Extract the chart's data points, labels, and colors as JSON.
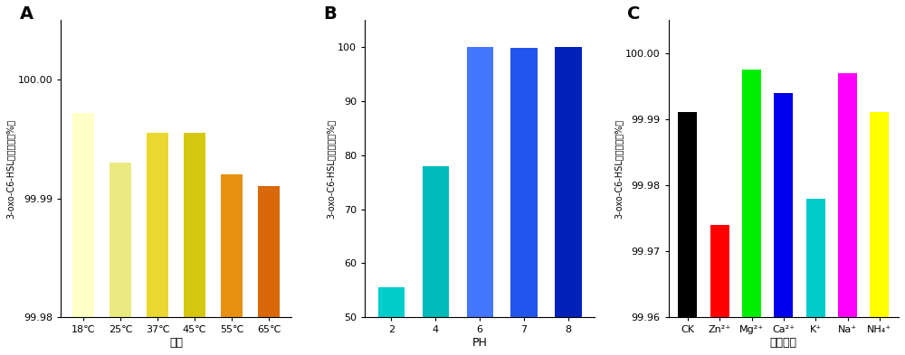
{
  "A": {
    "categories": [
      "18℃",
      "25℃",
      "37℃",
      "45℃",
      "55℃",
      "65℃"
    ],
    "values": [
      99.9972,
      99.993,
      99.9955,
      99.9955,
      99.992,
      99.991
    ],
    "colors": [
      "#FFFFC8",
      "#EAEA80",
      "#E8D830",
      "#D4C810",
      "#E89010",
      "#D86808"
    ],
    "xlabel": "温度",
    "ylabel": "3-oxo-C6-HSL的降解量（%）",
    "ylim_lo": 99.98,
    "ylim_hi": 100.005,
    "yticks": [
      99.98,
      99.99,
      100.0
    ],
    "ytick_labels": [
      "99.98",
      "99.99",
      "100.00"
    ],
    "panel": "A"
  },
  "B": {
    "categories": [
      "2",
      "4",
      "6",
      "7",
      "8"
    ],
    "values": [
      55.5,
      78.0,
      100.0,
      99.8,
      100.0
    ],
    "colors": [
      "#00CCCC",
      "#00BBBB",
      "#4477FF",
      "#2255EE",
      "#0022BB"
    ],
    "xlabel": "PH",
    "ylabel": "3-oxo-C6-HSL的降解量（%）",
    "ylim_lo": 50,
    "ylim_hi": 105,
    "yticks": [
      50,
      60,
      70,
      80,
      90,
      100
    ],
    "ytick_labels": [
      "50",
      "60",
      "70",
      "80",
      "90",
      "100"
    ],
    "panel": "B"
  },
  "C": {
    "categories": [
      "CK",
      "Zn²⁺",
      "Mg²⁺",
      "Ca²⁺",
      "K⁺",
      "Na⁺",
      "NH₄⁺"
    ],
    "values": [
      99.991,
      99.974,
      99.9975,
      99.994,
      99.978,
      99.997,
      99.991
    ],
    "colors": [
      "#000000",
      "#FF0000",
      "#00EE00",
      "#0000EE",
      "#00CCCC",
      "#FF00FF",
      "#FFFF00"
    ],
    "xlabel": "金属离子",
    "ylabel": "3-oxo-C6-HSL的降解量（%）",
    "ylim_lo": 99.96,
    "ylim_hi": 100.005,
    "yticks": [
      99.96,
      99.97,
      99.98,
      99.99,
      100.0
    ],
    "ytick_labels": [
      "99.96",
      "99.97",
      "99.98",
      "99.99",
      "100.00"
    ],
    "panel": "C"
  },
  "fig_width": 10.0,
  "fig_height": 3.93
}
